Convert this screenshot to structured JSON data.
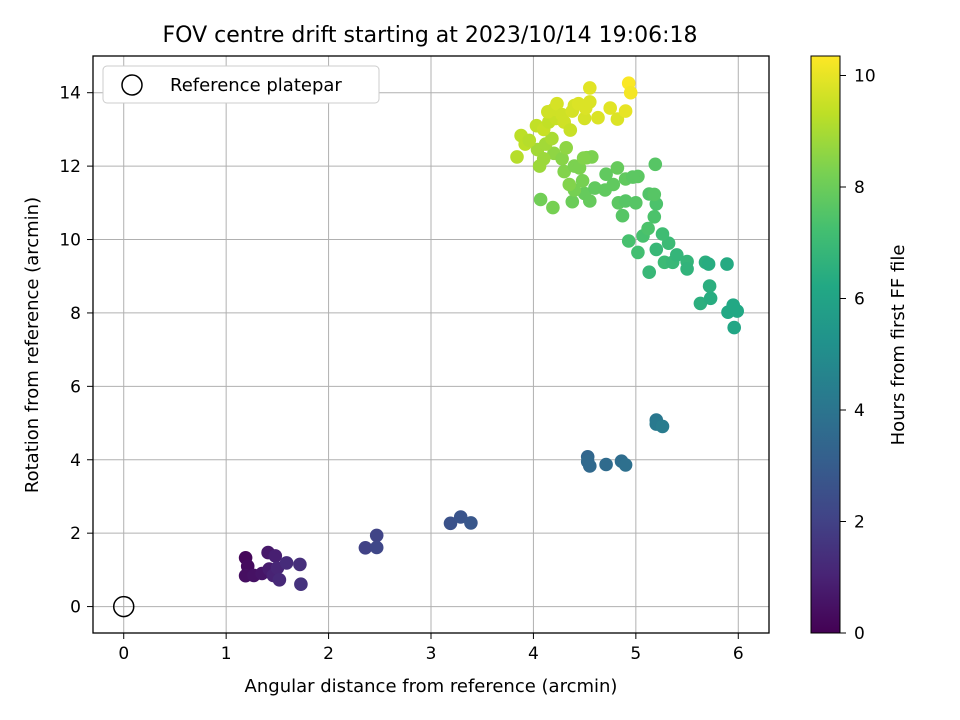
{
  "chart_data": {
    "type": "scatter",
    "title": "FOV centre drift starting at 2023/10/14 19:06:18",
    "xlabel": "Angular distance from reference (arcmin)",
    "ylabel": "Rotation from reference (arcmin)",
    "xlim": [
      -0.3,
      6.3
    ],
    "ylim": [
      -0.72,
      15.0
    ],
    "xticks": [
      "0",
      "1",
      "2",
      "3",
      "4",
      "5",
      "6"
    ],
    "yticks": [
      "0",
      "2",
      "4",
      "6",
      "8",
      "10",
      "12",
      "14"
    ],
    "grid": true,
    "legend": {
      "placement": "upper-left",
      "entries": [
        {
          "label": "Reference platepar",
          "marker": "open-circle"
        }
      ]
    },
    "reference_point": {
      "x": 0,
      "y": 0
    },
    "colorbar": {
      "label": "Hours from first FF file",
      "range": [
        0,
        10.35
      ],
      "ticks": [
        "0",
        "2",
        "4",
        "6",
        "8",
        "10"
      ],
      "colormap": "viridis"
    },
    "points": [
      [
        1.19,
        1.33,
        0.2
      ],
      [
        1.21,
        1.1,
        0.3
      ],
      [
        1.19,
        0.84,
        0.4
      ],
      [
        1.27,
        0.85,
        0.5
      ],
      [
        1.35,
        0.9,
        0.6
      ],
      [
        1.41,
        1.47,
        0.7
      ],
      [
        1.42,
        1.02,
        0.8
      ],
      [
        1.48,
        1.38,
        0.9
      ],
      [
        1.46,
        0.85,
        1.0
      ],
      [
        1.5,
        1.05,
        1.1
      ],
      [
        1.52,
        0.73,
        1.2
      ],
      [
        1.59,
        1.19,
        1.3
      ],
      [
        1.72,
        1.15,
        1.4
      ],
      [
        1.73,
        0.61,
        1.5
      ],
      [
        2.36,
        1.6,
        2.0
      ],
      [
        2.47,
        1.94,
        2.1
      ],
      [
        2.47,
        1.61,
        2.2
      ],
      [
        3.19,
        2.27,
        2.6
      ],
      [
        3.29,
        2.44,
        2.7
      ],
      [
        3.39,
        2.28,
        2.8
      ],
      [
        4.53,
        4.08,
        3.4
      ],
      [
        4.53,
        3.95,
        3.5
      ],
      [
        4.55,
        3.83,
        3.5
      ],
      [
        4.71,
        3.87,
        3.6
      ],
      [
        4.86,
        3.96,
        3.7
      ],
      [
        4.9,
        3.86,
        3.8
      ],
      [
        5.2,
        5.08,
        4.1
      ],
      [
        5.2,
        4.97,
        4.2
      ],
      [
        5.26,
        4.91,
        4.3
      ],
      [
        5.63,
        8.26,
        6.5
      ],
      [
        5.68,
        9.38,
        6.5
      ],
      [
        5.71,
        9.33,
        6.4
      ],
      [
        5.72,
        8.73,
        6.5
      ],
      [
        5.73,
        8.4,
        6.4
      ],
      [
        5.89,
        9.33,
        6.3
      ],
      [
        5.9,
        8.02,
        6.2
      ],
      [
        5.95,
        8.21,
        6.2
      ],
      [
        5.96,
        7.6,
        6.1
      ],
      [
        5.99,
        8.05,
        6.2
      ],
      [
        5.13,
        9.11,
        6.9
      ],
      [
        5.2,
        9.73,
        6.9
      ],
      [
        5.28,
        9.38,
        7.0
      ],
      [
        5.32,
        9.9,
        7.0
      ],
      [
        5.36,
        9.38,
        6.9
      ],
      [
        5.4,
        9.58,
        6.8
      ],
      [
        5.5,
        9.4,
        6.8
      ],
      [
        5.5,
        9.2,
        6.7
      ],
      [
        5.26,
        10.15,
        7.1
      ],
      [
        4.93,
        9.96,
        7.3
      ],
      [
        5.02,
        9.65,
        7.2
      ],
      [
        5.07,
        10.1,
        7.3
      ],
      [
        5.12,
        10.3,
        7.4
      ],
      [
        5.18,
        10.62,
        7.4
      ],
      [
        5.2,
        10.97,
        7.4
      ],
      [
        5.13,
        11.24,
        7.5
      ],
      [
        5.18,
        11.23,
        7.6
      ],
      [
        5.19,
        12.05,
        7.6
      ],
      [
        4.07,
        11.09,
        8.1
      ],
      [
        4.19,
        10.87,
        8.2
      ],
      [
        4.38,
        11.03,
        8.0
      ],
      [
        4.5,
        11.25,
        7.9
      ],
      [
        4.55,
        11.05,
        7.9
      ],
      [
        4.6,
        11.4,
        7.8
      ],
      [
        4.7,
        11.35,
        7.8
      ],
      [
        4.78,
        11.5,
        7.8
      ],
      [
        4.83,
        11.0,
        7.7
      ],
      [
        4.87,
        10.65,
        7.6
      ],
      [
        4.9,
        11.05,
        7.6
      ],
      [
        5.0,
        11.0,
        7.6
      ],
      [
        5.02,
        11.72,
        7.7
      ],
      [
        4.71,
        11.78,
        7.8
      ],
      [
        4.82,
        11.95,
        7.9
      ],
      [
        4.9,
        11.65,
        7.8
      ],
      [
        4.97,
        11.7,
        7.7
      ],
      [
        4.4,
        11.35,
        8.2
      ],
      [
        4.48,
        11.6,
        8.2
      ],
      [
        4.52,
        12.23,
        8.4
      ],
      [
        4.57,
        12.25,
        8.3
      ],
      [
        4.2,
        12.35,
        8.6
      ],
      [
        4.28,
        12.2,
        8.5
      ],
      [
        4.3,
        11.85,
        8.4
      ],
      [
        4.32,
        12.5,
        8.6
      ],
      [
        4.35,
        11.5,
        8.4
      ],
      [
        4.4,
        12.0,
        8.3
      ],
      [
        4.45,
        11.95,
        8.3
      ],
      [
        4.49,
        12.22,
        8.4
      ],
      [
        4.04,
        12.45,
        8.9
      ],
      [
        4.06,
        12.0,
        8.8
      ],
      [
        4.1,
        12.2,
        8.8
      ],
      [
        4.12,
        12.6,
        8.9
      ],
      [
        4.18,
        12.75,
        9.0
      ],
      [
        3.84,
        12.25,
        9.2
      ],
      [
        3.88,
        12.83,
        9.3
      ],
      [
        3.92,
        12.6,
        9.3
      ],
      [
        3.96,
        12.7,
        9.2
      ],
      [
        4.03,
        13.1,
        9.4
      ],
      [
        4.1,
        13.0,
        9.5
      ],
      [
        4.15,
        13.2,
        9.4
      ],
      [
        4.22,
        13.3,
        9.5
      ],
      [
        4.14,
        13.48,
        9.6
      ],
      [
        4.2,
        13.55,
        9.6
      ],
      [
        4.23,
        13.7,
        9.7
      ],
      [
        4.28,
        13.4,
        9.6
      ],
      [
        4.3,
        13.2,
        9.6
      ],
      [
        4.36,
        12.98,
        9.5
      ],
      [
        4.4,
        13.65,
        9.7
      ],
      [
        4.38,
        13.5,
        9.7
      ],
      [
        4.44,
        13.7,
        9.8
      ],
      [
        4.5,
        13.3,
        9.7
      ],
      [
        4.51,
        13.58,
        9.8
      ],
      [
        4.55,
        13.75,
        9.8
      ],
      [
        4.55,
        14.13,
        9.9
      ],
      [
        4.63,
        13.32,
        9.8
      ],
      [
        4.75,
        13.58,
        9.9
      ],
      [
        4.82,
        13.28,
        9.8
      ],
      [
        4.9,
        13.5,
        10.0
      ],
      [
        4.93,
        14.26,
        10.3
      ],
      [
        4.95,
        14.0,
        10.2
      ]
    ]
  }
}
